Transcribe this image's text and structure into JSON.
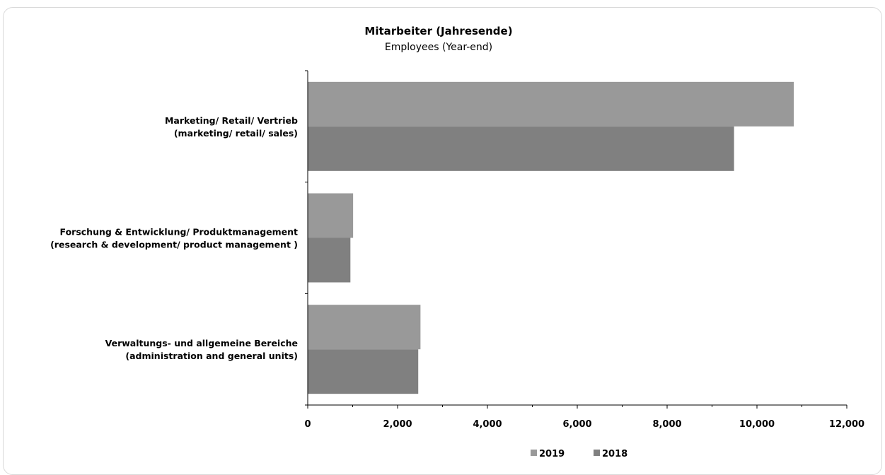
{
  "chart_data": {
    "type": "bar",
    "orientation": "horizontal",
    "title": "Mitarbeiter (Jahresende)",
    "subtitle": "Employees  (Year-end)",
    "categories": [
      {
        "line1": "Marketing/ Retail/ Vertrieb",
        "line2": "(marketing/ retail/ sales)"
      },
      {
        "line1": "Forschung & Entwicklung/ Produktmanagement",
        "line2": "(research & development/ product management )"
      },
      {
        "line1": "Verwaltungs- und allgemeine Bereiche",
        "line2": "(administration and general units)"
      }
    ],
    "series": [
      {
        "name": "2019",
        "color": "#999999",
        "values": [
          10820,
          1010,
          2510
        ]
      },
      {
        "name": "2018",
        "color": "#808080",
        "values": [
          9490,
          950,
          2460
        ]
      }
    ],
    "xlim": [
      0,
      12000
    ],
    "xticks": [
      0,
      2000,
      4000,
      6000,
      8000,
      10000,
      12000
    ],
    "xtick_labels": [
      "0",
      "2,000",
      "4,000",
      "6,000",
      "8,000",
      "10,000",
      "12,000"
    ],
    "grid": false,
    "legend_position": "bottom"
  }
}
